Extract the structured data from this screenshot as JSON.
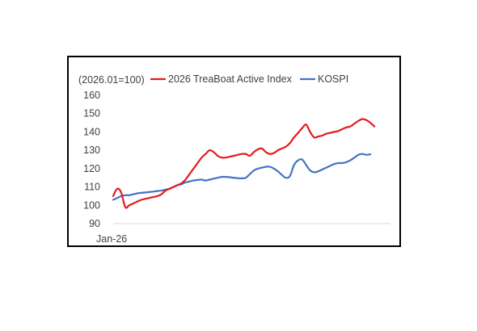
{
  "chart_data": {
    "type": "line",
    "title": "",
    "unit_note": "(2026.01=100)",
    "xlabel": "",
    "ylabel": "",
    "x_tick_labels": [
      "Jan-26"
    ],
    "y_ticks": [
      90,
      100,
      110,
      120,
      130,
      140,
      150,
      160
    ],
    "ylim": [
      90,
      160
    ],
    "grid": false,
    "legend_position": "top",
    "x": [
      0,
      1,
      2,
      3,
      4,
      5,
      6,
      7,
      8,
      9,
      10,
      11,
      12,
      13,
      14,
      15,
      16,
      17,
      18,
      19,
      20,
      21,
      22,
      23,
      24,
      25,
      26,
      27,
      28,
      29,
      30,
      31,
      32,
      33,
      34,
      35,
      36,
      37,
      38,
      39,
      40,
      41,
      42,
      43,
      44,
      45,
      46,
      47,
      48,
      49,
      50,
      51,
      52,
      53,
      54,
      55,
      56,
      57,
      58,
      59,
      60,
      61,
      62,
      63,
      64,
      65,
      66,
      67,
      68,
      69
    ],
    "series": [
      {
        "name": "2026 TreaBoat Active Index",
        "color": "#e31a1c",
        "values": [
          105,
          109,
          107,
          99,
          100,
          101,
          102,
          103,
          103.5,
          104,
          104.5,
          105,
          106,
          108,
          109,
          110,
          111,
          112,
          114,
          117,
          120,
          123,
          126,
          128,
          130,
          129,
          127,
          126,
          126,
          126.5,
          127,
          127.5,
          128,
          128,
          127,
          129,
          130.5,
          131,
          129,
          128,
          128.5,
          130,
          131,
          132,
          134,
          137,
          139.5,
          142,
          144,
          140,
          137,
          137.5,
          138,
          139,
          139.5,
          140,
          140.5,
          141.5,
          142.5,
          143,
          144.5,
          146,
          147,
          146.5,
          145,
          143,
          null,
          null,
          null,
          null
        ]
      },
      {
        "name": "KOSPI",
        "color": "#4472c4",
        "values": [
          103,
          104,
          105,
          105.5,
          105.5,
          106,
          106.5,
          106.8,
          107,
          107.2,
          107.5,
          107.8,
          108,
          108.5,
          109,
          110,
          111,
          111.5,
          112.5,
          113,
          113.5,
          113.8,
          114,
          113.5,
          114,
          114.5,
          115,
          115.5,
          115.5,
          115.3,
          115,
          114.8,
          114.7,
          115,
          117,
          119,
          120,
          120.5,
          121,
          121,
          120,
          118.5,
          116.5,
          115,
          116,
          122,
          124.5,
          125,
          122,
          119,
          118,
          118.5,
          119.5,
          120.5,
          121.5,
          122.5,
          123,
          123,
          123.5,
          124.5,
          126,
          127.5,
          128,
          127.5,
          127.8,
          null,
          null,
          null,
          null,
          null
        ]
      }
    ]
  }
}
